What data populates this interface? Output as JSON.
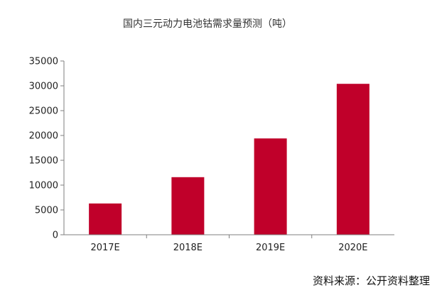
{
  "chart_data": {
    "type": "bar",
    "title": "国内三元动力电池钴需求量预测（吨）",
    "xlabel": "",
    "ylabel": "",
    "categories": [
      "2017E",
      "2018E",
      "2019E",
      "2020E"
    ],
    "values": [
      6300,
      11600,
      19400,
      30400
    ],
    "ylim": [
      0,
      35000
    ],
    "yticks": [
      0,
      5000,
      10000,
      15000,
      20000,
      25000,
      30000,
      35000
    ],
    "grid": false,
    "legend": "none",
    "bar_color": "#C0002A"
  },
  "footer": {
    "source": "资料来源：公开资料整理"
  }
}
